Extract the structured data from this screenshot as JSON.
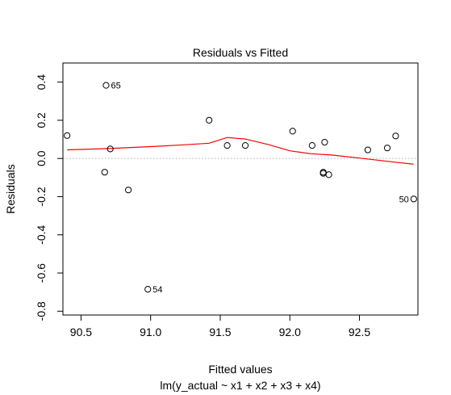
{
  "chart_data": {
    "type": "scatter",
    "title": "Residuals vs Fitted",
    "xlabel": "Fitted values",
    "sublabel": "lm(y_actual ~ x1 + x2 + x3 + x4)",
    "ylabel": "Residuals",
    "xlim": [
      90.37,
      92.92
    ],
    "ylim": [
      -0.82,
      0.5
    ],
    "x_ticks": [
      "90.5",
      "91.0",
      "91.5",
      "92.0",
      "92.5"
    ],
    "x_tick_values": [
      90.5,
      91.0,
      91.5,
      92.0,
      92.5
    ],
    "y_ticks": [
      "-0.8",
      "-0.6",
      "-0.4",
      "-0.2",
      "0.0",
      "0.2",
      "0.4"
    ],
    "y_tick_values": [
      -0.8,
      -0.6,
      -0.4,
      -0.2,
      0.0,
      0.2,
      0.4
    ],
    "points": [
      {
        "x": 90.4,
        "y": 0.12
      },
      {
        "x": 90.67,
        "y": -0.072
      },
      {
        "x": 90.68,
        "y": 0.383,
        "label": "65"
      },
      {
        "x": 90.71,
        "y": 0.05
      },
      {
        "x": 90.84,
        "y": -0.165
      },
      {
        "x": 90.98,
        "y": -0.685,
        "label": "54"
      },
      {
        "x": 91.42,
        "y": 0.2
      },
      {
        "x": 91.55,
        "y": 0.068
      },
      {
        "x": 91.68,
        "y": 0.068
      },
      {
        "x": 92.02,
        "y": 0.143
      },
      {
        "x": 92.16,
        "y": 0.068
      },
      {
        "x": 92.24,
        "y": -0.072
      },
      {
        "x": 92.24,
        "y": -0.078
      },
      {
        "x": 92.25,
        "y": 0.085
      },
      {
        "x": 92.28,
        "y": -0.085
      },
      {
        "x": 92.56,
        "y": 0.045
      },
      {
        "x": 92.7,
        "y": 0.055
      },
      {
        "x": 92.76,
        "y": 0.118
      },
      {
        "x": 92.89,
        "y": -0.212,
        "label": "50"
      }
    ],
    "smooth_line": {
      "color": "#ff0000",
      "x": [
        90.4,
        90.7,
        91.0,
        91.25,
        91.42,
        91.55,
        91.68,
        91.85,
        92.0,
        92.15,
        92.3,
        92.5,
        92.7,
        92.89
      ],
      "y": [
        0.045,
        0.052,
        0.062,
        0.072,
        0.08,
        0.11,
        0.102,
        0.072,
        0.04,
        0.025,
        0.018,
        0.002,
        -0.015,
        -0.03
      ]
    },
    "reference_line": {
      "y": 0.0,
      "color": "#b0b0b0",
      "style": "dotted"
    },
    "grid": false,
    "point_color": "#000000",
    "point_style": "open-circle"
  }
}
